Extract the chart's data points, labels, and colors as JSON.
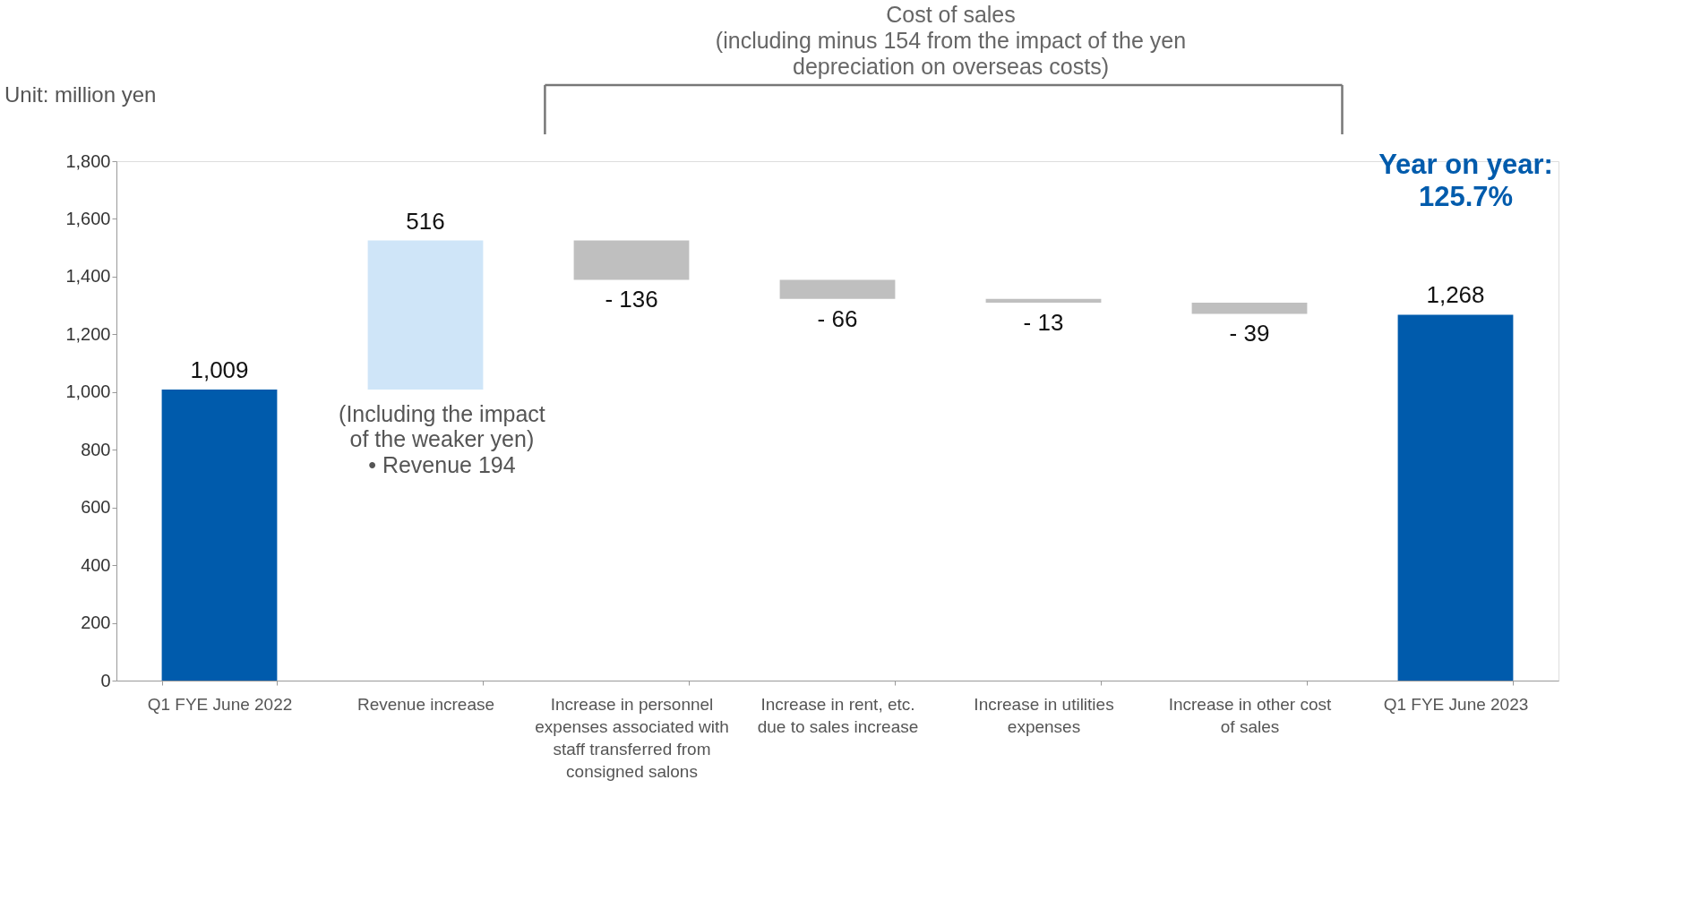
{
  "chart_data": {
    "type": "bar",
    "categories": [
      "Q1 FYE June 2022",
      "Revenue increase",
      "Increase in personnel expenses associated with staff transferred from consigned salons",
      "Increase in rent, etc. due to sales increase",
      "Increase in utilities expenses",
      "Increase in other cost of sales",
      "Q1 FYE June 2023"
    ],
    "values": [
      1009,
      516,
      -136,
      -66,
      -13,
      -39,
      1268
    ],
    "base": [
      0,
      1009,
      1525,
      1389,
      1323,
      1310,
      0
    ],
    "colors": [
      "#005bac",
      "#cfe5f8",
      "#bfbfbf",
      "#bfbfbf",
      "#bfbfbf",
      "#bfbfbf",
      "#005bac"
    ],
    "value_labels": [
      "1,009",
      "516",
      "- 136",
      "- 66",
      "- 13",
      "- 39",
      "1,268"
    ],
    "ylim": [
      0,
      1800
    ],
    "yticks": [
      {
        "value": 0,
        "label": "0"
      },
      {
        "value": 200,
        "label": "200"
      },
      {
        "value": 400,
        "label": "400"
      },
      {
        "value": 600,
        "label": "600"
      },
      {
        "value": 800,
        "label": "800"
      },
      {
        "value": 1000,
        "label": "1,000"
      },
      {
        "value": 1200,
        "label": "1,200"
      },
      {
        "value": 1400,
        "label": "1,400"
      },
      {
        "value": 1600,
        "label": "1,600"
      },
      {
        "value": 1800,
        "label": "1,800"
      }
    ],
    "grid": false,
    "annotations": [
      "Unit: million yen",
      "Cost of sales\n(including minus 154 from the impact of the yen\ndepreciation on overseas costs)",
      "Year on year:\n125.7%",
      "(Including the impact\nof the weaker yen)\n• Revenue          194"
    ]
  }
}
